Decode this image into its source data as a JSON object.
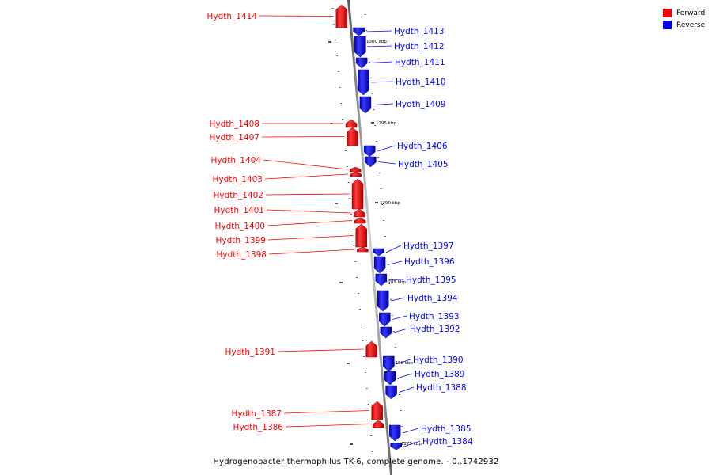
{
  "legend": {
    "forward_label": "Forward",
    "reverse_label": "Reverse",
    "forward_color": "#ff0000",
    "reverse_color": "#0000ff"
  },
  "caption": "Hydrogenobacter thermophilus TK-6, complete genome. - 0..1742932",
  "scale_ticks": [
    {
      "label": "1300 kbp",
      "pos": 1300000
    },
    {
      "label": "1295 kbp",
      "pos": 1295000
    },
    {
      "label": "1290 kbp",
      "pos": 1290000
    },
    {
      "label": "1285 kbp",
      "pos": 1285000
    },
    {
      "label": "1280 kbp",
      "pos": 1280000
    },
    {
      "label": "1275 kbp",
      "pos": 1275000
    }
  ],
  "genes": [
    {
      "label": "Hydth_1414",
      "strand": "forward"
    },
    {
      "label": "Hydth_1413",
      "strand": "reverse"
    },
    {
      "label": "Hydth_1412",
      "strand": "reverse"
    },
    {
      "label": "Hydth_1411",
      "strand": "reverse"
    },
    {
      "label": "Hydth_1410",
      "strand": "reverse"
    },
    {
      "label": "Hydth_1409",
      "strand": "reverse"
    },
    {
      "label": "Hydth_1408",
      "strand": "forward"
    },
    {
      "label": "Hydth_1407",
      "strand": "forward"
    },
    {
      "label": "Hydth_1406",
      "strand": "reverse"
    },
    {
      "label": "Hydth_1405",
      "strand": "reverse"
    },
    {
      "label": "Hydth_1404",
      "strand": "forward"
    },
    {
      "label": "Hydth_1403",
      "strand": "forward"
    },
    {
      "label": "Hydth_1402",
      "strand": "forward"
    },
    {
      "label": "Hydth_1401",
      "strand": "forward"
    },
    {
      "label": "Hydth_1400",
      "strand": "forward"
    },
    {
      "label": "Hydth_1399",
      "strand": "forward"
    },
    {
      "label": "Hydth_1398",
      "strand": "forward"
    },
    {
      "label": "Hydth_1397",
      "strand": "reverse"
    },
    {
      "label": "Hydth_1396",
      "strand": "reverse"
    },
    {
      "label": "Hydth_1395",
      "strand": "reverse"
    },
    {
      "label": "Hydth_1394",
      "strand": "reverse"
    },
    {
      "label": "Hydth_1393",
      "strand": "reverse"
    },
    {
      "label": "Hydth_1392",
      "strand": "reverse"
    },
    {
      "label": "Hydth_1391",
      "strand": "forward"
    },
    {
      "label": "Hydth_1390",
      "strand": "reverse"
    },
    {
      "label": "Hydth_1389",
      "strand": "reverse"
    },
    {
      "label": "Hydth_1388",
      "strand": "reverse"
    },
    {
      "label": "Hydth_1387",
      "strand": "forward"
    },
    {
      "label": "Hydth_1386",
      "strand": "forward"
    },
    {
      "label": "Hydth_1385",
      "strand": "reverse"
    },
    {
      "label": "Hydth_1384",
      "strand": "reverse"
    }
  ]
}
